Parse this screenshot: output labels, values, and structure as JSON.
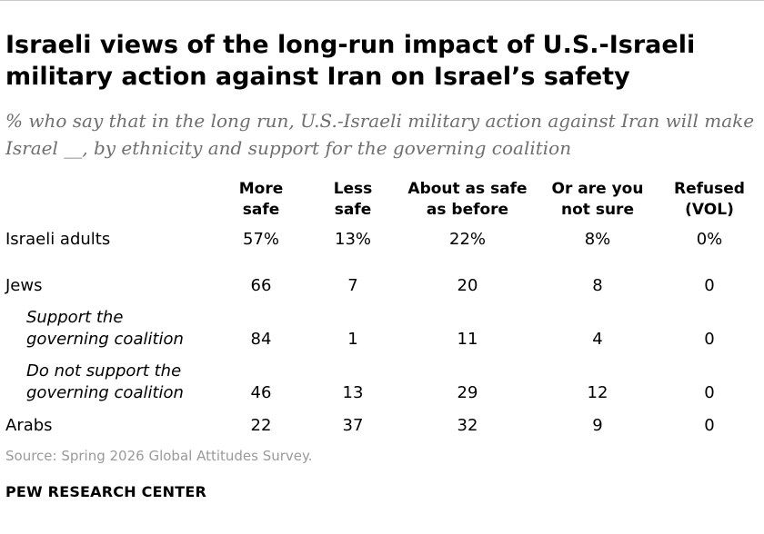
{
  "title": "Israeli views of the long-run impact of U.S.-Israeli military action against Iran on Israel’s safety",
  "subtitle": "% who say that in the long run, U.S.-Israeli military action against Iran will make Israel __, by ethnicity and support for the governing coalition",
  "source": "Source: Spring 2026 Global Attitudes Survey.",
  "brand": "PEW RESEARCH CENTER",
  "chart_data": {
    "type": "table",
    "title": "Israeli views of the long-run impact of U.S.-Israeli military action against Iran on Israel’s safety",
    "columns": [
      {
        "line1": "More",
        "line2": "safe"
      },
      {
        "line1": "Less",
        "line2": "safe"
      },
      {
        "line1": "About as safe",
        "line2": "as before"
      },
      {
        "line1": "Or are you",
        "line2": "not sure"
      },
      {
        "line1": "Refused",
        "line2": "(VOL)"
      }
    ],
    "rows": [
      {
        "label_lines": [
          "Israeli adults"
        ],
        "sub": false,
        "values": [
          "57%",
          "13%",
          "22%",
          "8%",
          "0%"
        ]
      },
      {
        "label_lines": [
          "Jews"
        ],
        "sub": false,
        "values": [
          "66",
          "7",
          "20",
          "8",
          "0"
        ]
      },
      {
        "label_lines": [
          "Support the",
          "governing coalition"
        ],
        "sub": true,
        "values": [
          "84",
          "1",
          "11",
          "4",
          "0"
        ]
      },
      {
        "label_lines": [
          "Do not support the",
          "governing coalition"
        ],
        "sub": true,
        "values": [
          "46",
          "13",
          "29",
          "12",
          "0"
        ]
      },
      {
        "label_lines": [
          "Arabs"
        ],
        "sub": false,
        "values": [
          "22",
          "37",
          "32",
          "9",
          "0"
        ]
      }
    ]
  }
}
